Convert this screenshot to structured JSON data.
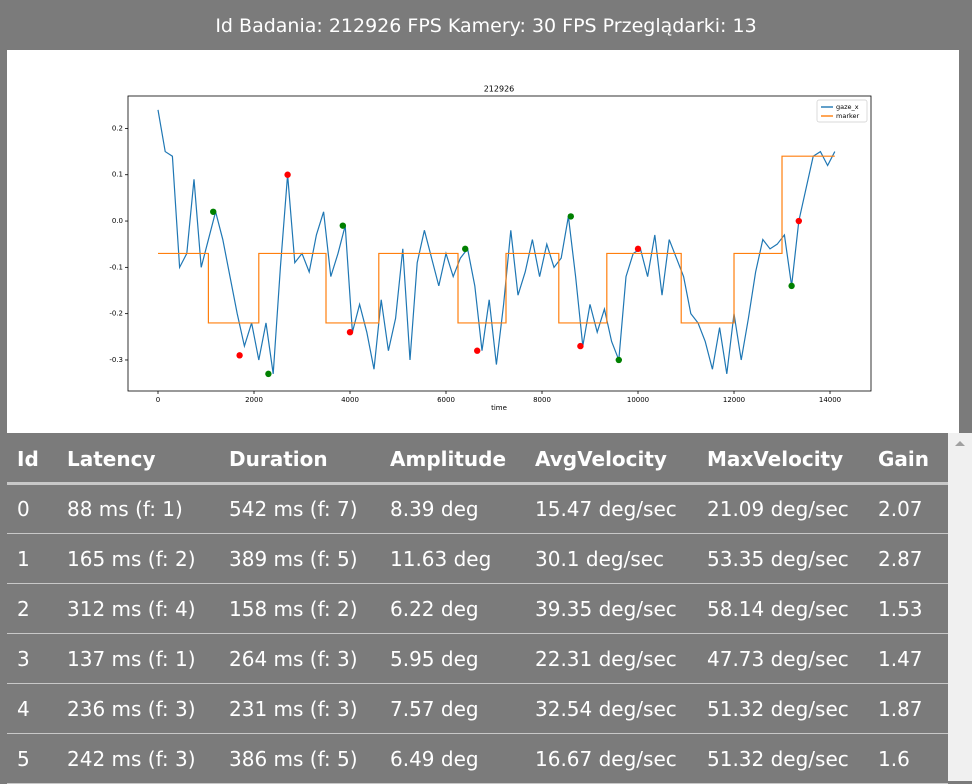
{
  "header": {
    "title": "Id Badania: 212926 FPS Kamery: 30 FPS Przeglądarki: 13"
  },
  "chart_data": {
    "type": "line",
    "title": "212926",
    "x_label": "time",
    "legend": "upper right",
    "xlim": [
      -625,
      14854
    ],
    "ylim": [
      -0.367,
      0.27
    ],
    "xticks": [
      0,
      2000,
      4000,
      6000,
      8000,
      10000,
      12000,
      14000
    ],
    "yticks": [
      -0.3,
      -0.2,
      -0.1,
      {
        "value": 0,
        "label": "0.0"
      },
      0.1,
      0.2
    ],
    "series": [
      {
        "name": "gaze_x",
        "color": "#1f77b4",
        "x": [
          0,
          150,
          300,
          450,
          600,
          750,
          900,
          1050,
          1200,
          1350,
          1500,
          1650,
          1800,
          1950,
          2100,
          2250,
          2400,
          2550,
          2700,
          2850,
          3000,
          3150,
          3300,
          3450,
          3600,
          3750,
          3900,
          4050,
          4200,
          4350,
          4500,
          4650,
          4800,
          4950,
          5100,
          5250,
          5400,
          5550,
          5700,
          5850,
          6000,
          6150,
          6300,
          6450,
          6600,
          6750,
          6900,
          7050,
          7200,
          7350,
          7500,
          7650,
          7800,
          7950,
          8100,
          8250,
          8400,
          8550,
          8700,
          8850,
          9000,
          9150,
          9300,
          9450,
          9600,
          9750,
          9900,
          10050,
          10200,
          10350,
          10500,
          10650,
          10800,
          10950,
          11100,
          11250,
          11400,
          11550,
          11700,
          11850,
          12000,
          12150,
          12300,
          12450,
          12600,
          12750,
          12900,
          13050,
          13200,
          13350,
          13500,
          13650,
          13800,
          13950,
          14100
        ],
        "values": [
          0.24,
          0.15,
          0.14,
          -0.1,
          -0.07,
          0.09,
          -0.1,
          -0.04,
          0.02,
          -0.04,
          -0.12,
          -0.2,
          -0.27,
          -0.22,
          -0.3,
          -0.22,
          -0.33,
          -0.1,
          0.1,
          -0.09,
          -0.07,
          -0.11,
          -0.03,
          0.02,
          -0.12,
          -0.07,
          -0.01,
          -0.24,
          -0.18,
          -0.24,
          -0.32,
          -0.17,
          -0.28,
          -0.21,
          -0.06,
          -0.3,
          -0.09,
          -0.02,
          -0.08,
          -0.14,
          -0.07,
          -0.12,
          -0.08,
          -0.06,
          -0.14,
          -0.28,
          -0.17,
          -0.31,
          -0.18,
          -0.02,
          -0.16,
          -0.11,
          -0.04,
          -0.12,
          -0.05,
          -0.1,
          -0.08,
          0.01,
          -0.12,
          -0.27,
          -0.18,
          -0.24,
          -0.19,
          -0.26,
          -0.3,
          -0.12,
          -0.07,
          -0.06,
          -0.12,
          -0.03,
          -0.16,
          -0.04,
          -0.08,
          -0.12,
          -0.2,
          -0.22,
          -0.26,
          -0.32,
          -0.23,
          -0.33,
          -0.2,
          -0.3,
          -0.21,
          -0.11,
          -0.04,
          -0.06,
          -0.05,
          -0.03,
          -0.14,
          0.0,
          0.07,
          0.14,
          0.15,
          0.12,
          0.15
        ]
      },
      {
        "name": "marker",
        "color": "#ff7f0e",
        "x": [
          0,
          1050,
          1050,
          2100,
          2100,
          3500,
          3500,
          4600,
          4600,
          6250,
          6250,
          7250,
          7250,
          8350,
          8350,
          9350,
          9350,
          10900,
          10900,
          12000,
          12000,
          13000,
          13000,
          14100
        ],
        "values": [
          -0.07,
          -0.07,
          -0.22,
          -0.22,
          -0.07,
          -0.07,
          -0.22,
          -0.22,
          -0.07,
          -0.07,
          -0.22,
          -0.22,
          -0.07,
          -0.07,
          -0.22,
          -0.22,
          -0.07,
          -0.07,
          -0.22,
          -0.22,
          -0.07,
          -0.07,
          0.14,
          0.14
        ]
      }
    ],
    "points": [
      {
        "color": "#008000",
        "x": [
          1150,
          2300,
          3850,
          6400,
          8600,
          9600,
          13200
        ],
        "values": [
          0.02,
          -0.33,
          -0.01,
          -0.06,
          0.01,
          -0.3,
          -0.14
        ]
      },
      {
        "color": "#ff0000",
        "x": [
          1700,
          2700,
          4000,
          6650,
          8800,
          10000,
          13350
        ],
        "values": [
          -0.29,
          0.1,
          -0.24,
          -0.28,
          -0.27,
          -0.06,
          0.0
        ]
      }
    ]
  },
  "table": {
    "columns": [
      "Id",
      "Latency",
      "Duration",
      "Amplitude",
      "AvgVelocity",
      "MaxVelocity",
      "Gain"
    ],
    "rows": [
      [
        "0",
        "88 ms (f: 1)",
        "542 ms (f: 7)",
        "8.39 deg",
        "15.47 deg/sec",
        "21.09 deg/sec",
        "2.07"
      ],
      [
        "1",
        "165 ms (f: 2)",
        "389 ms (f: 5)",
        "11.63 deg",
        "30.1 deg/sec",
        "53.35 deg/sec",
        "2.87"
      ],
      [
        "2",
        "312 ms (f: 4)",
        "158 ms (f: 2)",
        "6.22 deg",
        "39.35 deg/sec",
        "58.14 deg/sec",
        "1.53"
      ],
      [
        "3",
        "137 ms (f: 1)",
        "264 ms (f: 3)",
        "5.95 deg",
        "22.31 deg/sec",
        "47.73 deg/sec",
        "1.47"
      ],
      [
        "4",
        "236 ms (f: 3)",
        "231 ms (f: 3)",
        "7.57 deg",
        "32.54 deg/sec",
        "51.32 deg/sec",
        "1.87"
      ],
      [
        "5",
        "242 ms (f: 3)",
        "386 ms (f: 5)",
        "6.49 deg",
        "16.67 deg/sec",
        "51.32 deg/sec",
        "1.6"
      ]
    ]
  }
}
